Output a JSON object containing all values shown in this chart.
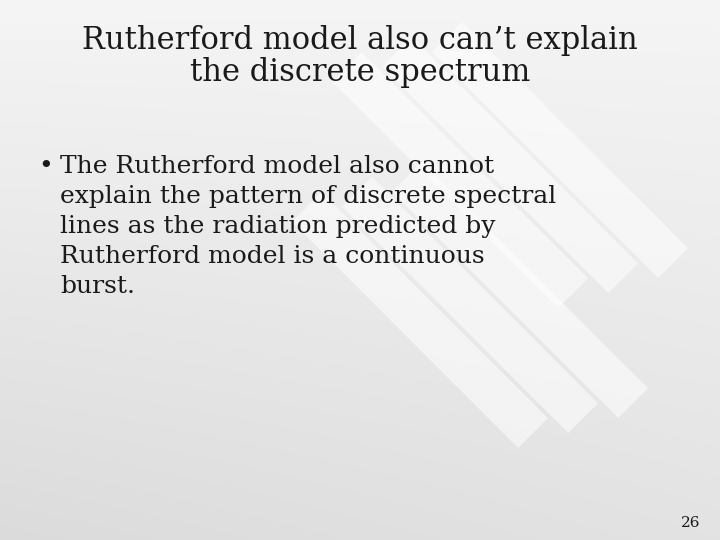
{
  "title_line1": "Rutherford model also can’t explain",
  "title_line2": "the discrete spectrum",
  "bullet_text_lines": [
    "The Rutherford model also cannot",
    "explain the pattern of discrete spectral",
    "lines as the radiation predicted by",
    "Rutherford model is a continuous",
    "burst."
  ],
  "page_number": "26",
  "text_color": "#1a1a1a",
  "title_fontsize": 22,
  "body_fontsize": 18,
  "page_num_fontsize": 11,
  "font_family": "DejaVu Serif",
  "wm_color": "#e0e0e0",
  "wm_alpha": 0.85
}
